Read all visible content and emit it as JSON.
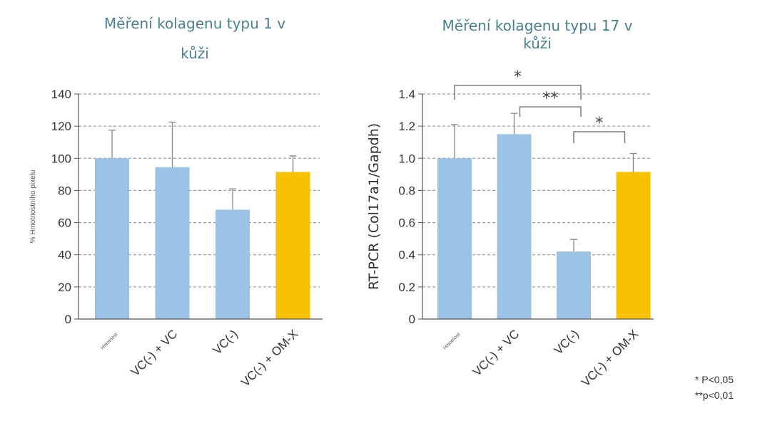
{
  "legend": {
    "note1": "* P<0,05",
    "note2": "**p<0,01"
  },
  "colors": {
    "blue_bar": "#9cc3e6",
    "yellow_bar": "#f7c300",
    "title": "#4a7f8c",
    "axis": "#555555"
  },
  "chart_data": [
    {
      "type": "bar",
      "title_lines": [
        "Měření kolagenu typu 1 v",
        "kůži"
      ],
      "ylabel": "% Hmotnostního pixelu",
      "categories": [
        "Hmotnost",
        "VC(-) + VC",
        "VC(-)",
        "VC(-) + OM-X"
      ],
      "values": [
        100,
        94.5,
        68,
        91.5
      ],
      "errors": [
        17.5,
        28,
        13,
        10
      ],
      "bar_colors": [
        "#9cc3e6",
        "#9cc3e6",
        "#9cc3e6",
        "#f7c300"
      ],
      "ylim": [
        0,
        140
      ],
      "yticks": [
        0,
        20,
        40,
        60,
        80,
        100,
        120,
        140
      ],
      "ytick_labels": [
        "0",
        "20",
        "40",
        "60",
        "80",
        "100",
        "120",
        "140"
      ],
      "grid": "dashed horizontal"
    },
    {
      "type": "bar",
      "title_lines": [
        "Měření kolagenu typu 17 v",
        "kůži"
      ],
      "ylabel": "RT-PCR (Col17a1/Gapdh)",
      "categories": [
        "Hmotnost",
        "VC(-) + VC",
        "VC(-)",
        "VC(-) + OM-X"
      ],
      "values": [
        1.0,
        1.15,
        0.42,
        0.915
      ],
      "errors": [
        0.21,
        0.13,
        0.075,
        0.115
      ],
      "bar_colors": [
        "#9cc3e6",
        "#9cc3e6",
        "#9cc3e6",
        "#f7c300"
      ],
      "ylim": [
        0,
        1.4
      ],
      "yticks": [
        0,
        0.2,
        0.4,
        0.6,
        0.8,
        1.0,
        1.2,
        1.4
      ],
      "ytick_labels": [
        "0",
        "0.2",
        "0.4",
        "0.6",
        "0.8",
        "1.0",
        "1.2",
        "1.4"
      ],
      "grid": "dashed horizontal",
      "significance": [
        {
          "from": 0,
          "to": 2,
          "label": "*"
        },
        {
          "from": 1,
          "to": 2,
          "label": "**"
        },
        {
          "from": 2,
          "to": 3,
          "label": "*"
        }
      ]
    }
  ]
}
